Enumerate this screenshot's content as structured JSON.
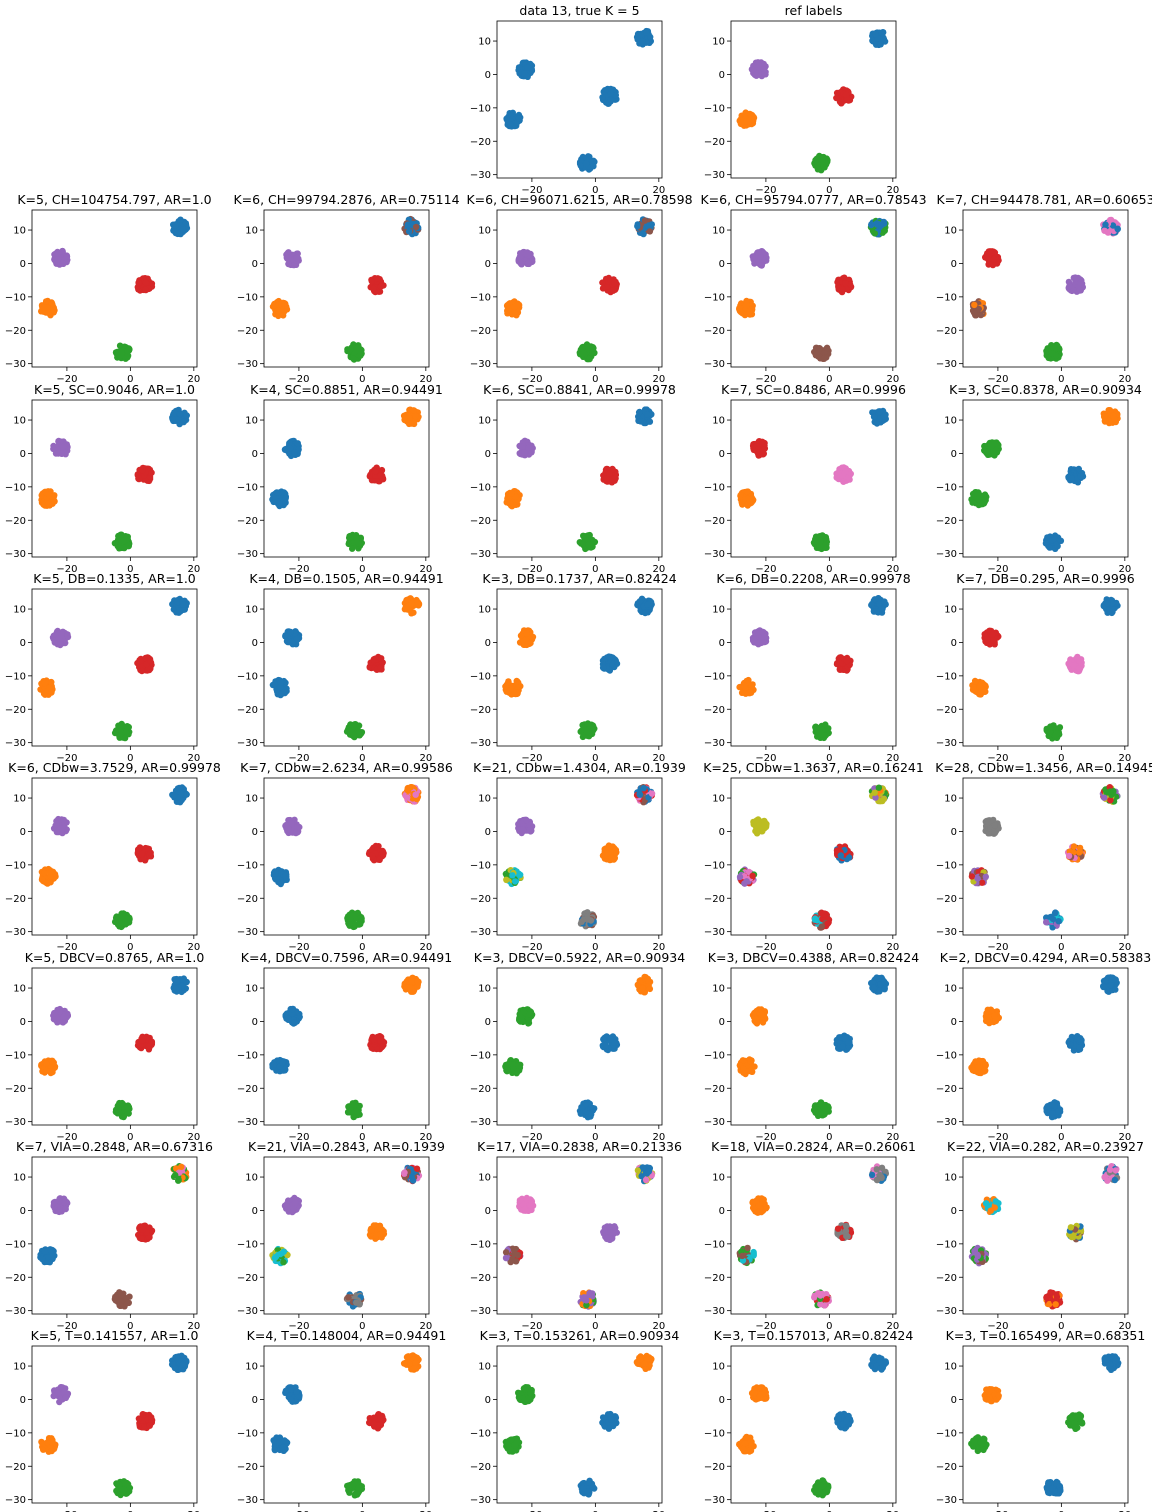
{
  "figure": {
    "xlim": [
      -31,
      21
    ],
    "ylim": [
      -31,
      16
    ],
    "xticks": [
      -20,
      0,
      20
    ],
    "yticks": [
      -30,
      -20,
      -10,
      0,
      10
    ],
    "colors": {
      "blue": "#1f77b4",
      "orange": "#ff7f0e",
      "green": "#2ca02c",
      "red": "#d62728",
      "purple": "#9467bd",
      "brown": "#8c564b",
      "pink": "#e377c2",
      "gray": "#7f7f7f",
      "olive": "#bcbd22",
      "cyan": "#17becf"
    },
    "clusters": [
      {
        "name": "c1",
        "x": 15.5,
        "y": 11
      },
      {
        "name": "c2",
        "x": -22,
        "y": 1.5
      },
      {
        "name": "c3",
        "x": 4.5,
        "y": -6.5
      },
      {
        "name": "c4",
        "x": -26,
        "y": -13.5
      },
      {
        "name": "c5",
        "x": -2.5,
        "y": -26.5
      }
    ]
  },
  "chart_data": [
    {
      "type": "scatter",
      "title": "data 13, true K = 5",
      "colors": [
        "blue",
        "blue",
        "blue",
        "blue",
        "blue"
      ]
    },
    {
      "type": "scatter",
      "title": "ref labels",
      "colors": [
        "blue",
        "purple",
        "red",
        "orange",
        "green"
      ]
    },
    {
      "type": "scatter",
      "title": "K=5, CH=104754.797, AR=1.0",
      "colors": [
        "blue",
        "purple",
        "red",
        "orange",
        "green"
      ]
    },
    {
      "type": "scatter",
      "title": "K=6, CH=99794.2876, AR=0.75114",
      "colors": [
        "blue",
        "purple",
        "red",
        "orange",
        "green"
      ],
      "mix": {
        "0": [
          "brown"
        ]
      }
    },
    {
      "type": "scatter",
      "title": "K=6, CH=96071.6215, AR=0.78598",
      "colors": [
        "blue",
        "purple",
        "red",
        "orange",
        "green"
      ],
      "mix": {
        "0": [
          "brown"
        ]
      }
    },
    {
      "type": "scatter",
      "title": "K=6, CH=95794.0777, AR=0.78543",
      "colors": [
        "blue",
        "purple",
        "red",
        "orange",
        "brown"
      ],
      "mix": {
        "0": [
          "green"
        ]
      }
    },
    {
      "type": "scatter",
      "title": "K=7, CH=94478.781, AR=0.60653",
      "colors": [
        "pink",
        "red",
        "purple",
        "brown",
        "green"
      ],
      "mix": {
        "0": [
          "blue"
        ],
        "3": [
          "orange"
        ]
      }
    },
    {
      "type": "scatter",
      "title": "K=5, SC=0.9046, AR=1.0",
      "colors": [
        "blue",
        "purple",
        "red",
        "orange",
        "green"
      ]
    },
    {
      "type": "scatter",
      "title": "K=4, SC=0.8851, AR=0.94491",
      "colors": [
        "orange",
        "blue",
        "red",
        "blue",
        "green"
      ]
    },
    {
      "type": "scatter",
      "title": "K=6, SC=0.8841, AR=0.99978",
      "colors": [
        "blue",
        "purple",
        "red",
        "orange",
        "green"
      ]
    },
    {
      "type": "scatter",
      "title": "K=7, SC=0.8486, AR=0.9996",
      "colors": [
        "blue",
        "red",
        "pink",
        "orange",
        "green"
      ]
    },
    {
      "type": "scatter",
      "title": "K=3, SC=0.8378, AR=0.90934",
      "colors": [
        "orange",
        "green",
        "blue",
        "green",
        "blue"
      ]
    },
    {
      "type": "scatter",
      "title": "K=5, DB=0.1335, AR=1.0",
      "colors": [
        "blue",
        "purple",
        "red",
        "orange",
        "green"
      ]
    },
    {
      "type": "scatter",
      "title": "K=4, DB=0.1505, AR=0.94491",
      "colors": [
        "orange",
        "blue",
        "red",
        "blue",
        "green"
      ]
    },
    {
      "type": "scatter",
      "title": "K=3, DB=0.1737, AR=0.82424",
      "colors": [
        "blue",
        "orange",
        "blue",
        "orange",
        "green"
      ]
    },
    {
      "type": "scatter",
      "title": "K=6, DB=0.2208, AR=0.99978",
      "colors": [
        "blue",
        "purple",
        "red",
        "orange",
        "green"
      ]
    },
    {
      "type": "scatter",
      "title": "K=7, DB=0.295, AR=0.9996",
      "colors": [
        "blue",
        "red",
        "pink",
        "orange",
        "green"
      ]
    },
    {
      "type": "scatter",
      "title": "K=6, CDbw=3.7529, AR=0.99978",
      "colors": [
        "blue",
        "purple",
        "red",
        "orange",
        "green"
      ]
    },
    {
      "type": "scatter",
      "title": "K=7, CDbw=2.6234, AR=0.99586",
      "colors": [
        "orange",
        "purple",
        "red",
        "blue",
        "green"
      ],
      "mix": {
        "0": [
          "pink"
        ]
      }
    },
    {
      "type": "scatter",
      "title": "K=21, CDbw=1.4304, AR=0.1939",
      "colors": [
        "blue",
        "purple",
        "orange",
        "cyan",
        "gray"
      ],
      "mix": {
        "0": [
          "pink",
          "red",
          "brown"
        ],
        "3": [
          "olive",
          "green"
        ],
        "4": [
          "brown",
          "blue"
        ]
      }
    },
    {
      "type": "scatter",
      "title": "K=25, CDbw=1.3637, AR=0.16241",
      "colors": [
        "olive",
        "olive",
        "red",
        "purple",
        "red"
      ],
      "mix": {
        "0": [
          "purple",
          "orange",
          "green"
        ],
        "2": [
          "blue"
        ],
        "3": [
          "red",
          "pink",
          "green"
        ],
        "4": [
          "cyan",
          "brown"
        ]
      }
    },
    {
      "type": "scatter",
      "title": "K=28, CDbw=1.3456, AR=0.14945",
      "colors": [
        "green",
        "gray",
        "orange",
        "purple",
        "blue"
      ],
      "mix": {
        "0": [
          "red",
          "purple",
          "olive"
        ],
        "2": [
          "brown",
          "pink"
        ],
        "3": [
          "red",
          "olive",
          "brown"
        ],
        "4": [
          "purple",
          "cyan"
        ]
      }
    },
    {
      "type": "scatter",
      "title": "K=5, DBCV=0.8765, AR=1.0",
      "colors": [
        "blue",
        "purple",
        "red",
        "orange",
        "green"
      ]
    },
    {
      "type": "scatter",
      "title": "K=4, DBCV=0.7596, AR=0.94491",
      "colors": [
        "orange",
        "blue",
        "red",
        "blue",
        "green"
      ]
    },
    {
      "type": "scatter",
      "title": "K=3, DBCV=0.5922, AR=0.90934",
      "colors": [
        "orange",
        "green",
        "blue",
        "green",
        "blue"
      ]
    },
    {
      "type": "scatter",
      "title": "K=3, DBCV=0.4388, AR=0.82424",
      "colors": [
        "blue",
        "orange",
        "blue",
        "orange",
        "green"
      ]
    },
    {
      "type": "scatter",
      "title": "K=2, DBCV=0.4294, AR=0.58383",
      "colors": [
        "blue",
        "orange",
        "blue",
        "orange",
        "blue"
      ]
    },
    {
      "type": "scatter",
      "title": "K=7, VIA=0.2848, AR=0.67316",
      "colors": [
        "green",
        "purple",
        "red",
        "blue",
        "brown"
      ],
      "mix": {
        "0": [
          "orange",
          "pink"
        ]
      }
    },
    {
      "type": "scatter",
      "title": "K=21, VIA=0.2843, AR=0.1939",
      "colors": [
        "blue",
        "purple",
        "orange",
        "cyan",
        "gray"
      ],
      "mix": {
        "0": [
          "pink",
          "red",
          "brown"
        ],
        "3": [
          "olive",
          "green"
        ],
        "4": [
          "brown",
          "blue"
        ]
      }
    },
    {
      "type": "scatter",
      "title": "K=17, VIA=0.2838, AR=0.21336",
      "colors": [
        "blue",
        "pink",
        "purple",
        "brown",
        "purple"
      ],
      "mix": {
        "0": [
          "olive",
          "pink"
        ],
        "3": [
          "red",
          "purple"
        ],
        "4": [
          "orange",
          "green"
        ]
      }
    },
    {
      "type": "scatter",
      "title": "K=18, VIA=0.2824, AR=0.26061",
      "colors": [
        "gray",
        "orange",
        "gray",
        "brown",
        "pink"
      ],
      "mix": {
        "0": [
          "pink",
          "blue"
        ],
        "2": [
          "red"
        ],
        "3": [
          "cyan",
          "green"
        ],
        "4": [
          "red",
          "green"
        ]
      }
    },
    {
      "type": "scatter",
      "title": "K=22, VIA=0.282, AR=0.23927",
      "colors": [
        "pink",
        "cyan",
        "olive",
        "purple",
        "red"
      ],
      "mix": {
        "0": [
          "gray",
          "blue"
        ],
        "1": [
          "orange"
        ],
        "2": [
          "blue",
          "brown"
        ],
        "3": [
          "brown",
          "green"
        ],
        "4": [
          "orange"
        ]
      }
    },
    {
      "type": "scatter",
      "title": "K=5, T=0.141557, AR=1.0",
      "colors": [
        "blue",
        "purple",
        "red",
        "orange",
        "green"
      ]
    },
    {
      "type": "scatter",
      "title": "K=4, T=0.148004, AR=0.94491",
      "colors": [
        "orange",
        "blue",
        "red",
        "blue",
        "green"
      ]
    },
    {
      "type": "scatter",
      "title": "K=3, T=0.153261, AR=0.90934",
      "colors": [
        "orange",
        "green",
        "blue",
        "green",
        "blue"
      ]
    },
    {
      "type": "scatter",
      "title": "K=3, T=0.157013, AR=0.82424",
      "colors": [
        "blue",
        "orange",
        "blue",
        "orange",
        "green"
      ]
    },
    {
      "type": "scatter",
      "title": "K=3, T=0.165499, AR=0.68351",
      "colors": [
        "blue",
        "orange",
        "green",
        "green",
        "blue"
      ]
    }
  ]
}
